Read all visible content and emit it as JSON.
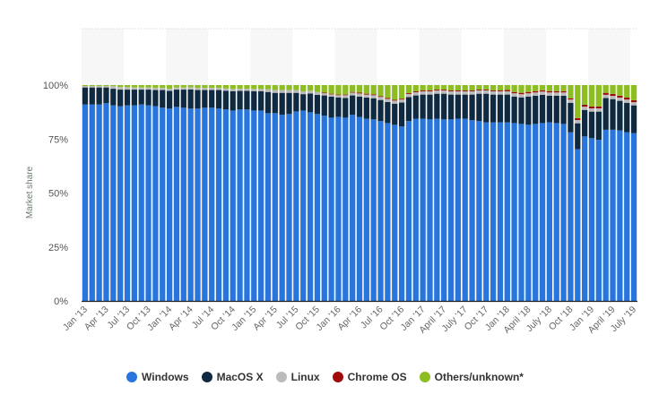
{
  "chart_data": {
    "type": "bar",
    "stacked": true,
    "ylabel": "Market share",
    "ylim": [
      0,
      100
    ],
    "yticks": [
      "0%",
      "25%",
      "50%",
      "75%",
      "100%"
    ],
    "ytick_values": [
      0,
      25,
      50,
      75,
      100
    ],
    "grid": false,
    "legend_position": "bottom",
    "x": [
      "2013-01",
      "2013-02",
      "2013-03",
      "2013-04",
      "2013-05",
      "2013-06",
      "2013-07",
      "2013-08",
      "2013-09",
      "2013-10",
      "2013-11",
      "2013-12",
      "2014-01",
      "2014-02",
      "2014-03",
      "2014-04",
      "2014-05",
      "2014-06",
      "2014-07",
      "2014-08",
      "2014-09",
      "2014-10",
      "2014-11",
      "2014-12",
      "2015-01",
      "2015-02",
      "2015-03",
      "2015-04",
      "2015-05",
      "2015-06",
      "2015-07",
      "2015-08",
      "2015-09",
      "2015-10",
      "2015-11",
      "2015-12",
      "2016-01",
      "2016-02",
      "2016-03",
      "2016-04",
      "2016-05",
      "2016-06",
      "2016-07",
      "2016-08",
      "2016-09",
      "2016-10",
      "2016-11",
      "2016-12",
      "2017-01",
      "2017-02",
      "2017-03",
      "2017-04",
      "2017-05",
      "2017-06",
      "2017-07",
      "2017-08",
      "2017-09",
      "2017-10",
      "2017-11",
      "2017-12",
      "2018-01",
      "2018-02",
      "2018-03",
      "2018-04",
      "2018-05",
      "2018-06",
      "2018-07",
      "2018-08",
      "2018-09",
      "2018-10",
      "2018-11",
      "2018-12",
      "2019-01",
      "2019-02",
      "2019-03",
      "2019-04",
      "2019-05",
      "2019-06",
      "2019-07"
    ],
    "xtick_labels": [
      "Jan '13",
      "Apr '13",
      "Jul '13",
      "Oct '13",
      "Jan '14",
      "Apr '14",
      "Jul '14",
      "Oct '14",
      "Jan '15",
      "Apr '15",
      "Jul '15",
      "Oct '15",
      "Jan '16",
      "Apr '16",
      "Jul '16",
      "Oct '16",
      "Jan '17",
      "April '17",
      "July '17",
      "Oct '17",
      "Jan '18",
      "April '18",
      "July '18",
      "Oct '18",
      "Jan '19",
      "April '19",
      "July '19"
    ],
    "xtick_every": 3,
    "series": [
      {
        "name": "Windows",
        "color": "#2876dd",
        "values": [
          91.0,
          91.0,
          91.0,
          91.6,
          90.6,
          90.2,
          90.6,
          90.6,
          91.0,
          90.6,
          90.2,
          89.5,
          89.1,
          89.9,
          89.5,
          89.1,
          89.1,
          89.5,
          89.5,
          89.1,
          88.7,
          88.2,
          88.7,
          88.7,
          88.2,
          88.2,
          87.0,
          87.0,
          86.2,
          86.6,
          87.8,
          88.2,
          87.4,
          86.6,
          85.8,
          84.9,
          85.3,
          84.9,
          86.2,
          85.2,
          84.4,
          84.1,
          83.3,
          82.4,
          81.6,
          80.8,
          83.3,
          84.4,
          84.4,
          84.1,
          84.4,
          84.1,
          84.1,
          84.4,
          84.4,
          83.7,
          83.3,
          82.7,
          82.7,
          82.7,
          82.7,
          82.4,
          82.0,
          81.6,
          82.0,
          82.4,
          82.7,
          82.4,
          82.0,
          78.1,
          70.3,
          76.2,
          75.4,
          74.6,
          79.3,
          79.3,
          79.0,
          78.1,
          77.7
        ]
      },
      {
        "name": "MacOS X",
        "color": "#0f2a40",
        "values": [
          7.9,
          7.9,
          7.9,
          7.3,
          7.7,
          7.7,
          7.3,
          7.3,
          6.9,
          7.3,
          7.5,
          8.2,
          8.2,
          8.0,
          8.4,
          8.9,
          8.6,
          8.2,
          8.2,
          8.6,
          8.7,
          9.0,
          8.6,
          8.6,
          9.0,
          9.0,
          9.8,
          9.4,
          10.2,
          9.8,
          8.6,
          7.6,
          8.7,
          8.9,
          9.4,
          9.8,
          9.0,
          9.1,
          9.0,
          9.5,
          9.8,
          9.8,
          9.8,
          9.8,
          9.8,
          11.1,
          11.1,
          10.8,
          11.2,
          11.5,
          11.6,
          11.9,
          11.5,
          11.2,
          11.2,
          11.9,
          12.7,
          13.3,
          12.9,
          12.9,
          12.9,
          12.3,
          12.3,
          13.1,
          13.1,
          13.1,
          12.4,
          12.7,
          13.1,
          13.7,
          12.0,
          12.3,
          12.3,
          13.1,
          14.7,
          14.2,
          13.7,
          13.7,
          12.9
        ]
      },
      {
        "name": "Linux",
        "color": "#bbbbbb",
        "values": [
          0.6,
          0.6,
          0.6,
          0.6,
          1.2,
          1.2,
          1.2,
          1.0,
          1.0,
          1.0,
          1.0,
          1.0,
          1.0,
          1.0,
          1.0,
          1.0,
          1.0,
          1.0,
          1.0,
          1.0,
          1.0,
          1.0,
          1.0,
          1.0,
          1.0,
          1.0,
          1.3,
          1.3,
          1.3,
          1.3,
          1.3,
          1.3,
          1.3,
          1.3,
          1.0,
          1.0,
          1.0,
          1.3,
          1.3,
          1.4,
          1.4,
          1.4,
          1.4,
          1.4,
          1.4,
          1.4,
          1.5,
          1.5,
          1.5,
          1.5,
          1.5,
          1.5,
          1.5,
          1.5,
          1.5,
          1.5,
          1.5,
          1.5,
          1.5,
          1.5,
          1.5,
          1.5,
          1.5,
          1.5,
          1.5,
          1.5,
          1.5,
          1.5,
          1.5,
          1.5,
          1.5,
          1.5,
          1.5,
          1.5,
          1.5,
          1.5,
          1.5,
          1.5,
          1.5
        ]
      },
      {
        "name": "Chrome OS",
        "color": "#a10a0a",
        "values": [
          0,
          0,
          0,
          0,
          0,
          0,
          0,
          0,
          0,
          0,
          0,
          0,
          0,
          0,
          0,
          0,
          0,
          0,
          0,
          0,
          0,
          0,
          0,
          0,
          0,
          0,
          0,
          0,
          0,
          0,
          0,
          0,
          0,
          0,
          0.3,
          0.3,
          0.3,
          0.3,
          0.3,
          0.4,
          0.4,
          0.4,
          0.4,
          0.4,
          0.4,
          0.4,
          0.4,
          0.4,
          0.4,
          0.4,
          0.4,
          0.4,
          0.4,
          0.4,
          0.4,
          0.4,
          0.4,
          0.4,
          0.4,
          0.4,
          0.6,
          0.6,
          0.6,
          0.6,
          0.6,
          0.6,
          0.6,
          0.6,
          0.6,
          0.6,
          0.9,
          0.9,
          0.9,
          0.9,
          0.9,
          0.9,
          0.9,
          0.9,
          0.9
        ]
      },
      {
        "name": "Others/unknown*",
        "color": "#8cbd21",
        "values": [
          0.5,
          0.5,
          0.5,
          0.5,
          0.5,
          0.9,
          0.9,
          1.1,
          1.1,
          1.1,
          1.3,
          1.3,
          1.7,
          1.1,
          1.1,
          1.0,
          1.3,
          1.3,
          1.3,
          1.3,
          1.6,
          1.8,
          1.7,
          1.7,
          1.8,
          1.8,
          1.9,
          2.3,
          2.3,
          2.3,
          2.3,
          2.9,
          2.6,
          3.2,
          3.5,
          4.0,
          4.4,
          4.4,
          3.2,
          3.5,
          4.0,
          4.3,
          5.1,
          6.0,
          6.8,
          6.3,
          3.7,
          2.9,
          2.5,
          2.5,
          2.1,
          2.1,
          2.5,
          2.5,
          2.5,
          2.5,
          2.1,
          2.1,
          2.5,
          2.5,
          2.3,
          3.2,
          3.6,
          3.2,
          2.8,
          2.4,
          2.8,
          2.8,
          2.8,
          6.1,
          15.3,
          9.1,
          9.9,
          9.9,
          3.6,
          4.1,
          4.9,
          5.8,
          7.0
        ]
      }
    ]
  }
}
